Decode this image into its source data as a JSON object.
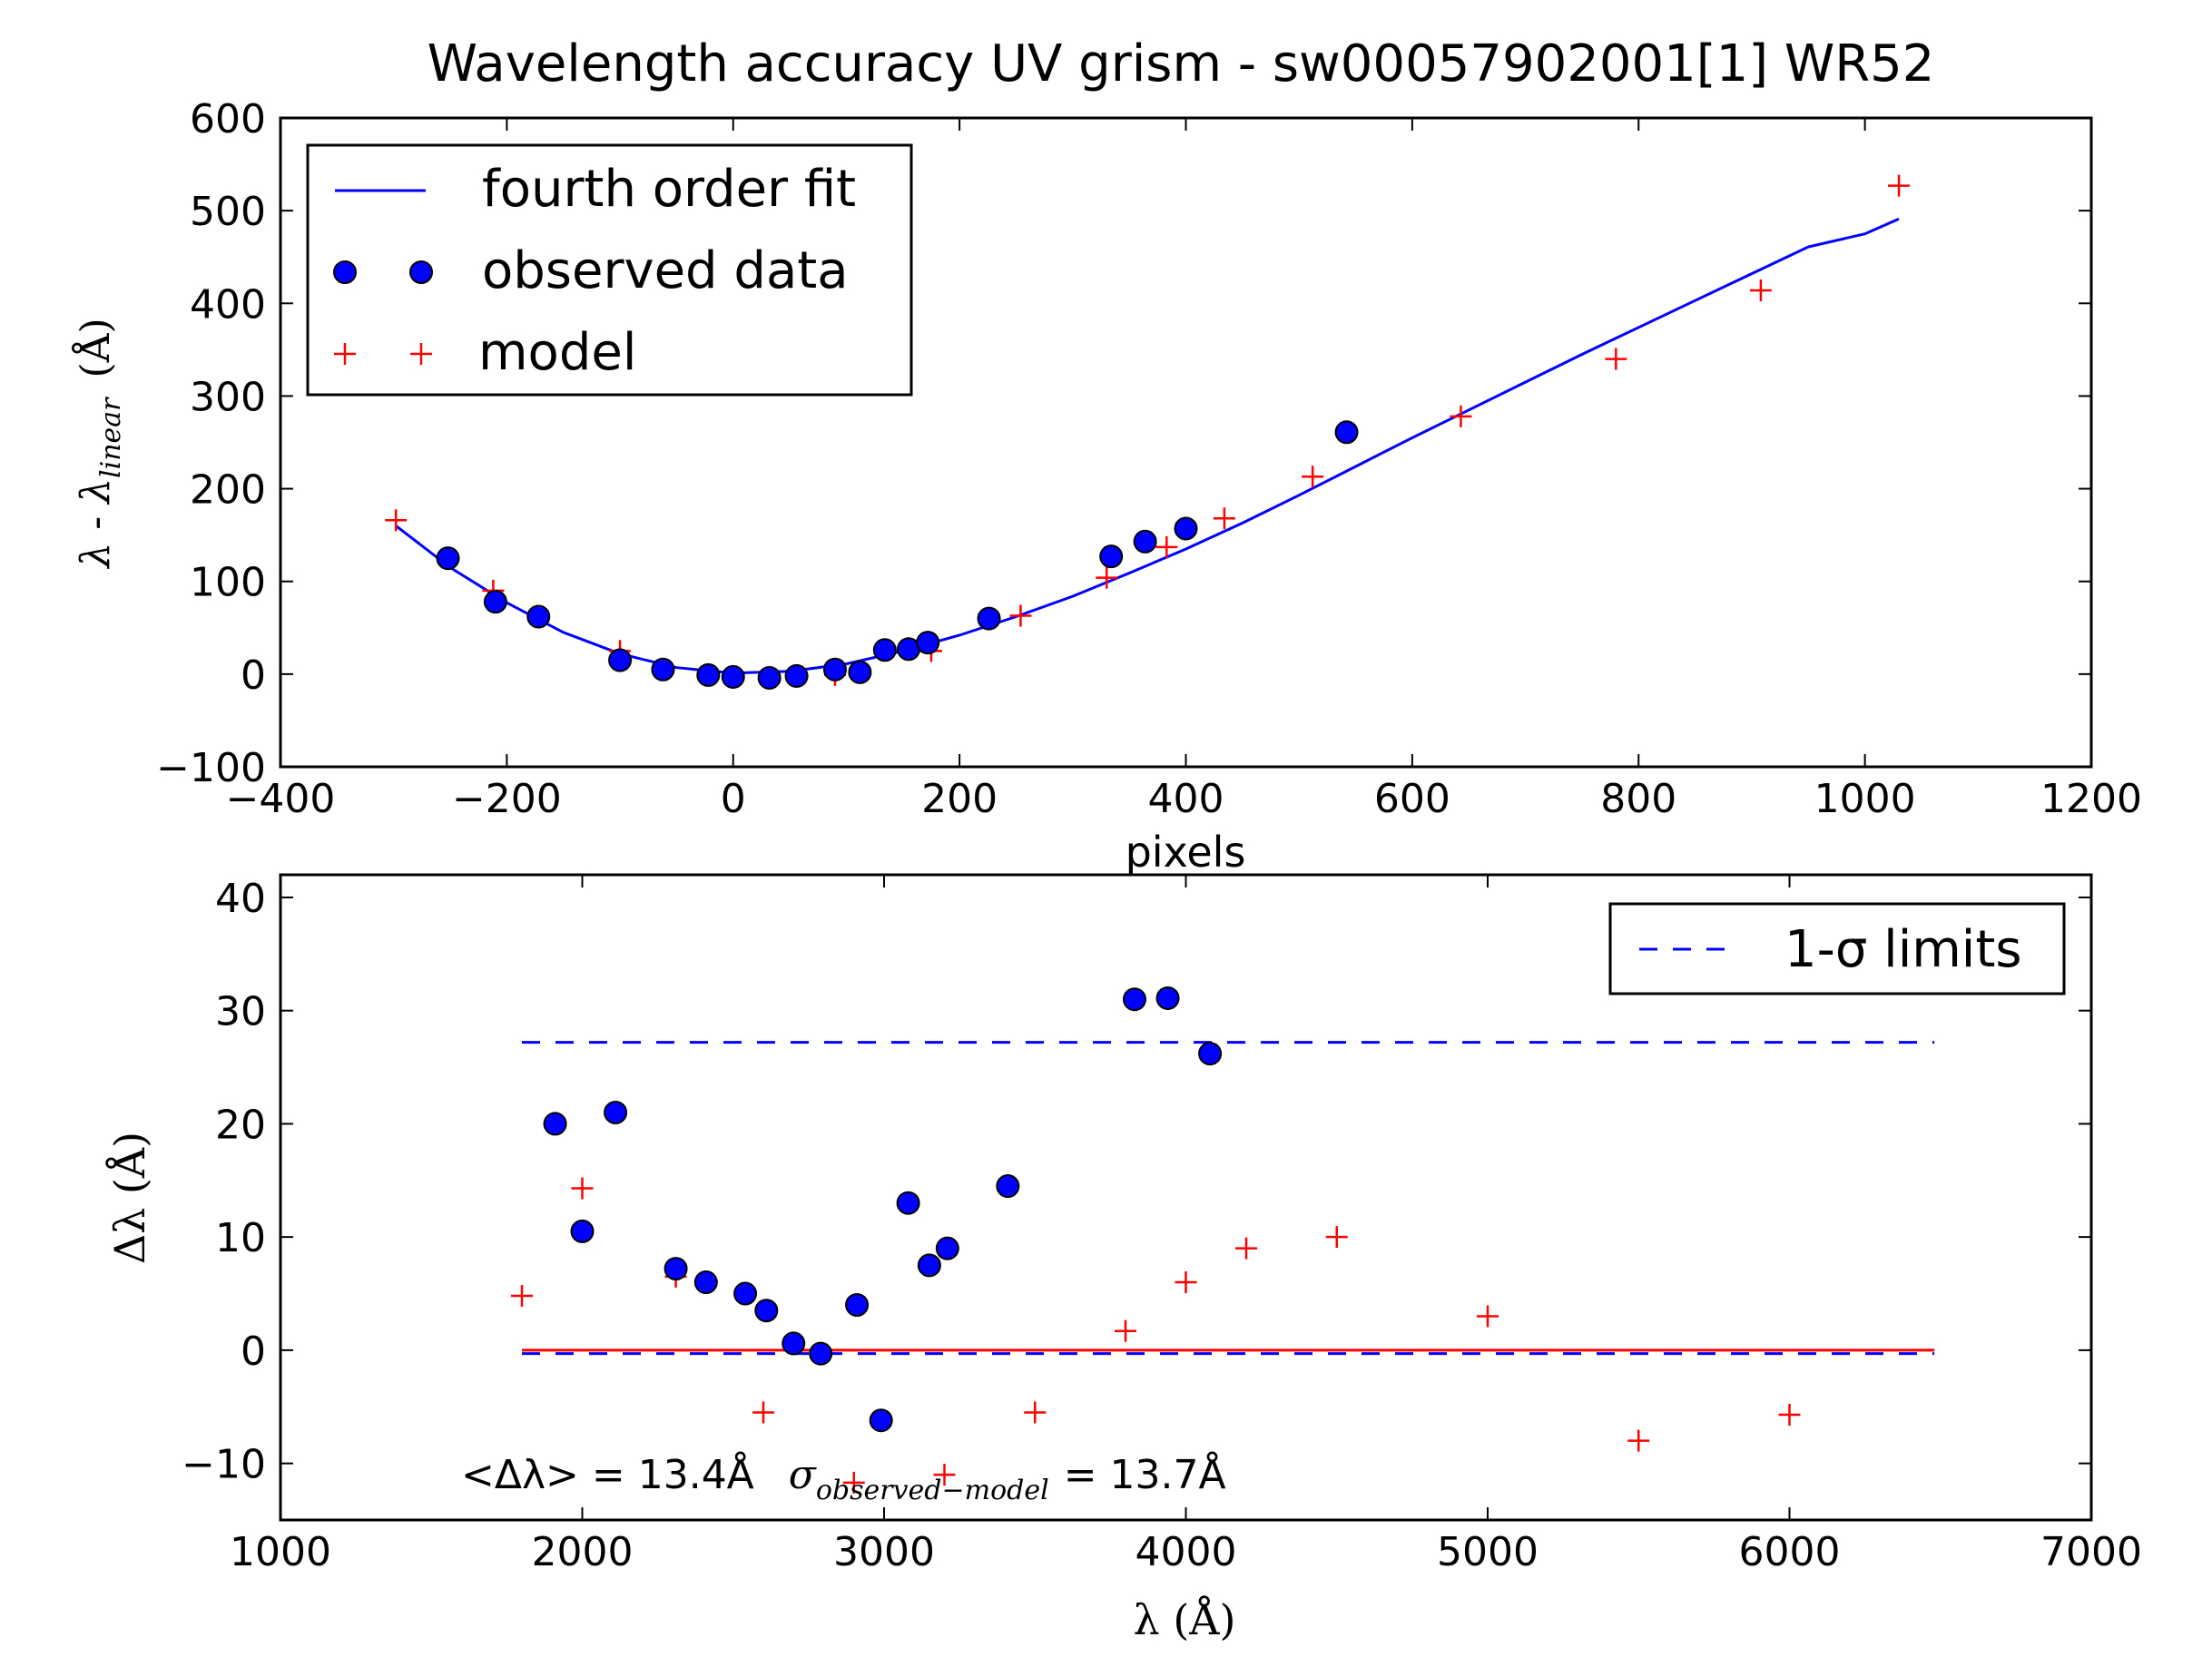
{
  "chart_data": [
    {
      "type": "scatter",
      "title": "Wavelength accuracy UV grism - sw00057902001[1] WR52",
      "xlabel": "pixels",
      "ylabel": "λ - λ_linear  (Å)",
      "ylabel_main": "λ - λ",
      "ylabel_sub": "linear",
      "ylabel_unit": "(Å)",
      "xlim": [
        -400,
        1200
      ],
      "ylim": [
        -100,
        600
      ],
      "xticks": [
        -400,
        -200,
        0,
        200,
        400,
        600,
        800,
        1000,
        1200
      ],
      "yticks": [
        -100,
        0,
        100,
        200,
        300,
        400,
        500,
        600
      ],
      "xtick_labels": [
        "−400",
        "−200",
        "0",
        "200",
        "400",
        "600",
        "800",
        "1000",
        "1200"
      ],
      "ytick_labels": [
        "−100",
        "0",
        "100",
        "200",
        "300",
        "400",
        "500",
        "600"
      ],
      "legend_position": "top-left",
      "series": [
        {
          "name": "fourth order fit",
          "kind": "line",
          "color": "#0000ff",
          "x": [
            -298,
            -250,
            -200,
            -150,
            -100,
            -50,
            0,
            50,
            100,
            150,
            200,
            250,
            300,
            350,
            400,
            450,
            500,
            550,
            600,
            650,
            700,
            750,
            800,
            850,
            900,
            950,
            1000,
            1030
          ],
          "y": [
            160,
            115,
            77,
            45,
            22,
            7,
            1,
            3,
            11,
            25,
            42,
            62,
            84,
            109,
            135,
            163,
            193,
            224,
            255,
            285,
            315,
            345,
            374,
            403,
            432,
            461,
            475,
            491
          ]
        },
        {
          "name": "observed data",
          "kind": "points",
          "color": "#0000ff",
          "marker": "circle",
          "x": [
            -252,
            -210,
            -172,
            -100,
            -62,
            -22,
            0,
            32,
            56,
            90,
            112,
            134,
            155,
            172,
            226,
            334,
            364,
            400,
            542
          ],
          "y": [
            125,
            78,
            62,
            15,
            5,
            -1,
            -3,
            -4,
            -2,
            5,
            2,
            26,
            27,
            34,
            60,
            127,
            143,
            157,
            261
          ]
        },
        {
          "name": "model",
          "kind": "points",
          "color": "#ff0000",
          "marker": "plus",
          "x": [
            -298,
            -212,
            -100,
            0,
            90,
            175,
            254,
            330,
            383,
            434,
            512,
            643,
            780,
            908,
            1030
          ],
          "y": [
            166,
            90,
            25,
            -4,
            -1,
            25,
            63,
            104,
            137,
            168,
            213,
            278,
            340,
            414,
            527
          ]
        }
      ]
    },
    {
      "type": "scatter",
      "title": "",
      "xlabel": "λ (Å)",
      "ylabel": "Δλ (Å)",
      "xlim": [
        1000,
        7000
      ],
      "ylim": [
        -15,
        42
      ],
      "xticks": [
        1000,
        2000,
        3000,
        4000,
        5000,
        6000,
        7000
      ],
      "yticks": [
        -10,
        0,
        10,
        20,
        30,
        40
      ],
      "xtick_labels": [
        "1000",
        "2000",
        "3000",
        "4000",
        "5000",
        "6000",
        "7000"
      ],
      "ytick_labels": [
        "−10",
        "0",
        "10",
        "20",
        "30",
        "40"
      ],
      "legend_position": "top-right",
      "annotation": "<Δλ> = 13.4Å   σ_observed−model = 13.7Å",
      "annotation_mean": "<Δλ> = 13.4Å",
      "annotation_sigma": "σ",
      "annotation_sigma_sub": "observed−model",
      "annotation_sigma_value": "= 13.7Å",
      "series": [
        {
          "name": "1-σ limits",
          "kind": "dashed-lines",
          "color": "#0000ff",
          "x": [
            1800,
            6480
          ],
          "levels": [
            27.2,
            -0.3
          ]
        },
        {
          "name": "",
          "kind": "line",
          "color": "#ff0000",
          "x": [
            1800,
            6480
          ],
          "y": [
            0,
            0
          ]
        },
        {
          "name": "",
          "kind": "points",
          "color": "#0000ff",
          "marker": "circle",
          "x": [
            1910,
            2000,
            2110,
            2310,
            2410,
            2540,
            2610,
            2700,
            2790,
            2910,
            2990,
            3080,
            3150,
            3210,
            3410,
            3830,
            3940,
            4080
          ],
          "y": [
            20,
            10.5,
            21,
            7.2,
            6,
            5,
            3.5,
            0.6,
            -0.3,
            4,
            -6.2,
            13,
            7.5,
            9,
            14.5,
            31,
            31.1,
            26.2
          ]
        },
        {
          "name": "",
          "kind": "points",
          "color": "#ff0000",
          "marker": "plus",
          "x": [
            1800,
            2000,
            2310,
            2600,
            2900,
            3200,
            3500,
            3800,
            4000,
            4200,
            4500,
            5000,
            5500,
            6000
          ],
          "y": [
            4.8,
            14.3,
            6.5,
            -5.5,
            -11.7,
            -11,
            -5.5,
            1.7,
            6,
            9,
            10,
            3,
            -8,
            -5.7
          ]
        }
      ]
    }
  ]
}
